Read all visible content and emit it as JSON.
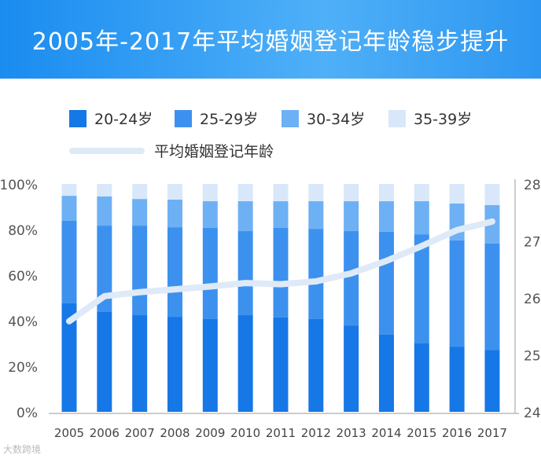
{
  "title": "2005年-2017年平均婚姻登记年龄稳步提升",
  "watermark": "大数跨境",
  "chart_data": {
    "type": "bar",
    "title": "2005年-2017年平均婚姻登记年龄稳步提升",
    "categories": [
      "2005",
      "2006",
      "2007",
      "2008",
      "2009",
      "2010",
      "2011",
      "2012",
      "2013",
      "2014",
      "2015",
      "2016",
      "2017"
    ],
    "series": [
      {
        "name": "20-24岁",
        "color": "#1677e6",
        "values": [
          47.6,
          43.8,
          42.4,
          41.7,
          40.7,
          42.4,
          41.4,
          40.7,
          37.9,
          33.8,
          30.0,
          28.6,
          27.2
        ]
      },
      {
        "name": "25-29岁",
        "color": "#3d91ee",
        "values": [
          36.2,
          37.9,
          39.3,
          39.3,
          40.0,
          36.9,
          39.3,
          39.6,
          41.4,
          45.2,
          47.9,
          46.6,
          46.6
        ]
      },
      {
        "name": "30-34岁",
        "color": "#6eb0f4",
        "values": [
          11.0,
          12.8,
          11.7,
          12.1,
          11.7,
          13.1,
          11.7,
          12.1,
          13.1,
          13.4,
          14.5,
          16.2,
          16.9
        ]
      },
      {
        "name": "35-39岁",
        "color": "#d8e8fa",
        "values": [
          5.2,
          5.5,
          6.6,
          6.9,
          7.6,
          7.6,
          7.6,
          7.6,
          7.6,
          7.6,
          7.6,
          8.6,
          9.3
        ]
      }
    ],
    "line": {
      "name": "平均婚姻登记年龄",
      "color": "#dfeaf8",
      "axis": "right",
      "values": [
        25.59,
        26.03,
        26.1,
        26.15,
        26.2,
        26.26,
        26.24,
        26.29,
        26.43,
        26.65,
        26.91,
        27.19,
        27.34
      ]
    },
    "ylim": [
      0,
      100
    ],
    "yticks": [
      "0%",
      "20%",
      "40%",
      "60%",
      "80%",
      "100%"
    ],
    "y2lim": [
      24,
      28
    ],
    "y2ticks": [
      "24",
      "25",
      "26",
      "27",
      "28"
    ],
    "legend": "top"
  }
}
